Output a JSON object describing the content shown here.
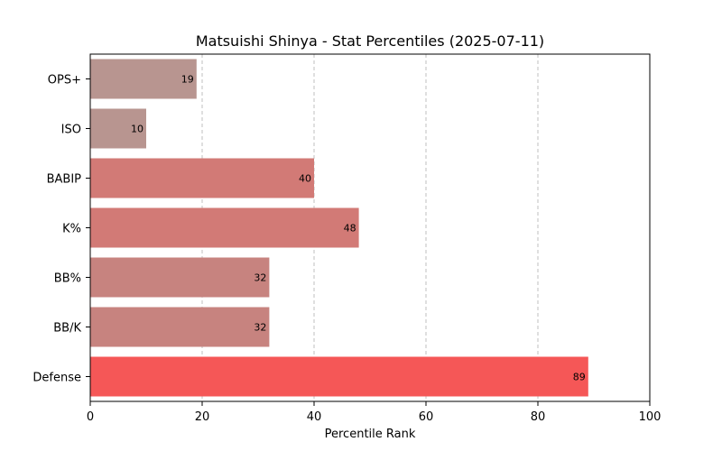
{
  "chart_data": {
    "type": "bar",
    "orientation": "horizontal",
    "title": "Matsuishi Shinya - Stat Percentiles (2025-07-11)",
    "xlabel": "Percentile Rank",
    "ylabel": "",
    "xlim": [
      0,
      100
    ],
    "xticks": [
      0,
      20,
      40,
      60,
      80,
      100
    ],
    "grid": "x-dashed",
    "categories": [
      "OPS+",
      "ISO",
      "BABIP",
      "K%",
      "BB%",
      "BB/K",
      "Defense"
    ],
    "values": [
      19,
      10,
      40,
      48,
      32,
      32,
      89
    ],
    "colors": [
      "#b89590",
      "#b89590",
      "#d27a76",
      "#d27a76",
      "#c7837f",
      "#c7837f",
      "#f55757"
    ]
  }
}
